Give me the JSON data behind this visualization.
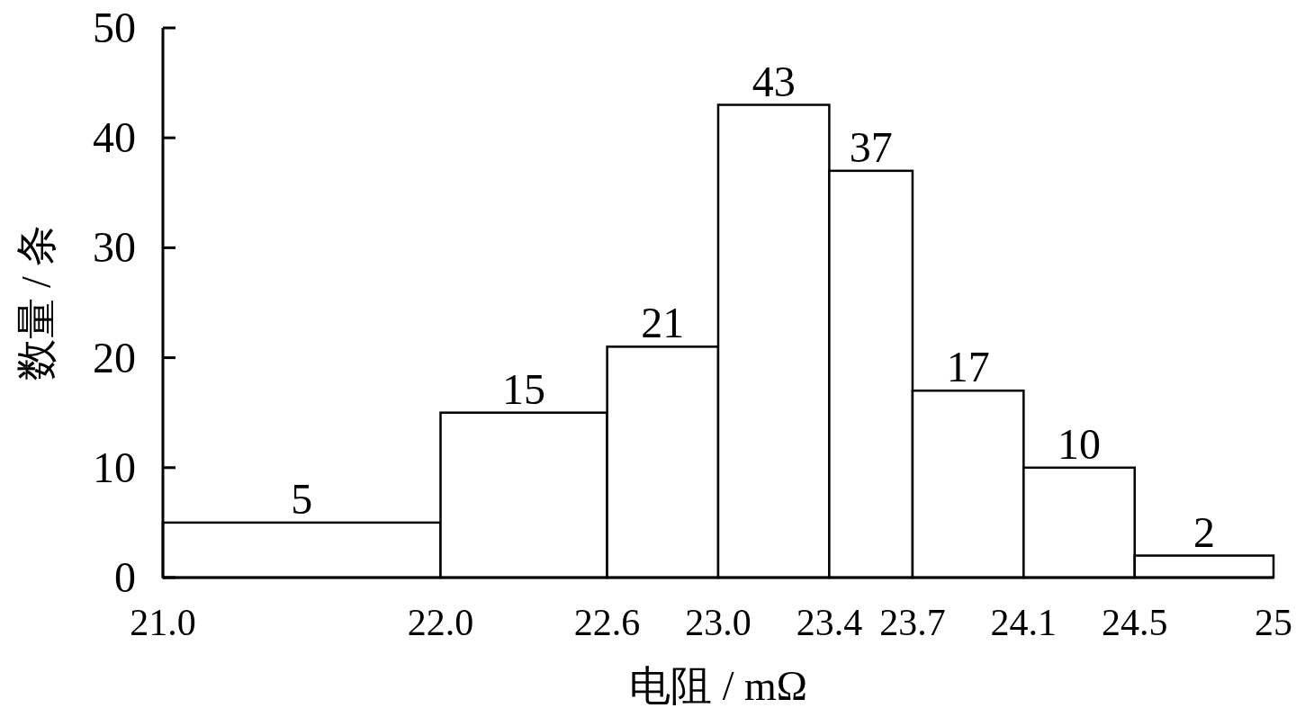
{
  "chart_data": {
    "type": "histogram",
    "xlabel": "电阻 / mΩ",
    "ylabel": "数量 / 条",
    "bins": [
      21.0,
      22.0,
      22.6,
      23.0,
      23.4,
      23.7,
      24.1,
      24.5,
      25
    ],
    "values": [
      5,
      15,
      21,
      43,
      37,
      17,
      10,
      2
    ],
    "color": "#ffffff",
    "xlim": [
      21.0,
      25
    ],
    "xticks": [
      {
        "value": 21.0,
        "label": "21.0"
      },
      {
        "value": 22.0,
        "label": "22.0"
      },
      22.6,
      {
        "value": 23.0,
        "label": "23.0"
      },
      23.4,
      23.7,
      24.1,
      24.5,
      25
    ],
    "ylim": [
      0,
      50
    ],
    "yticks": [
      0,
      10,
      20,
      30,
      40,
      50
    ],
    "data_labels": true,
    "grid": false
  }
}
